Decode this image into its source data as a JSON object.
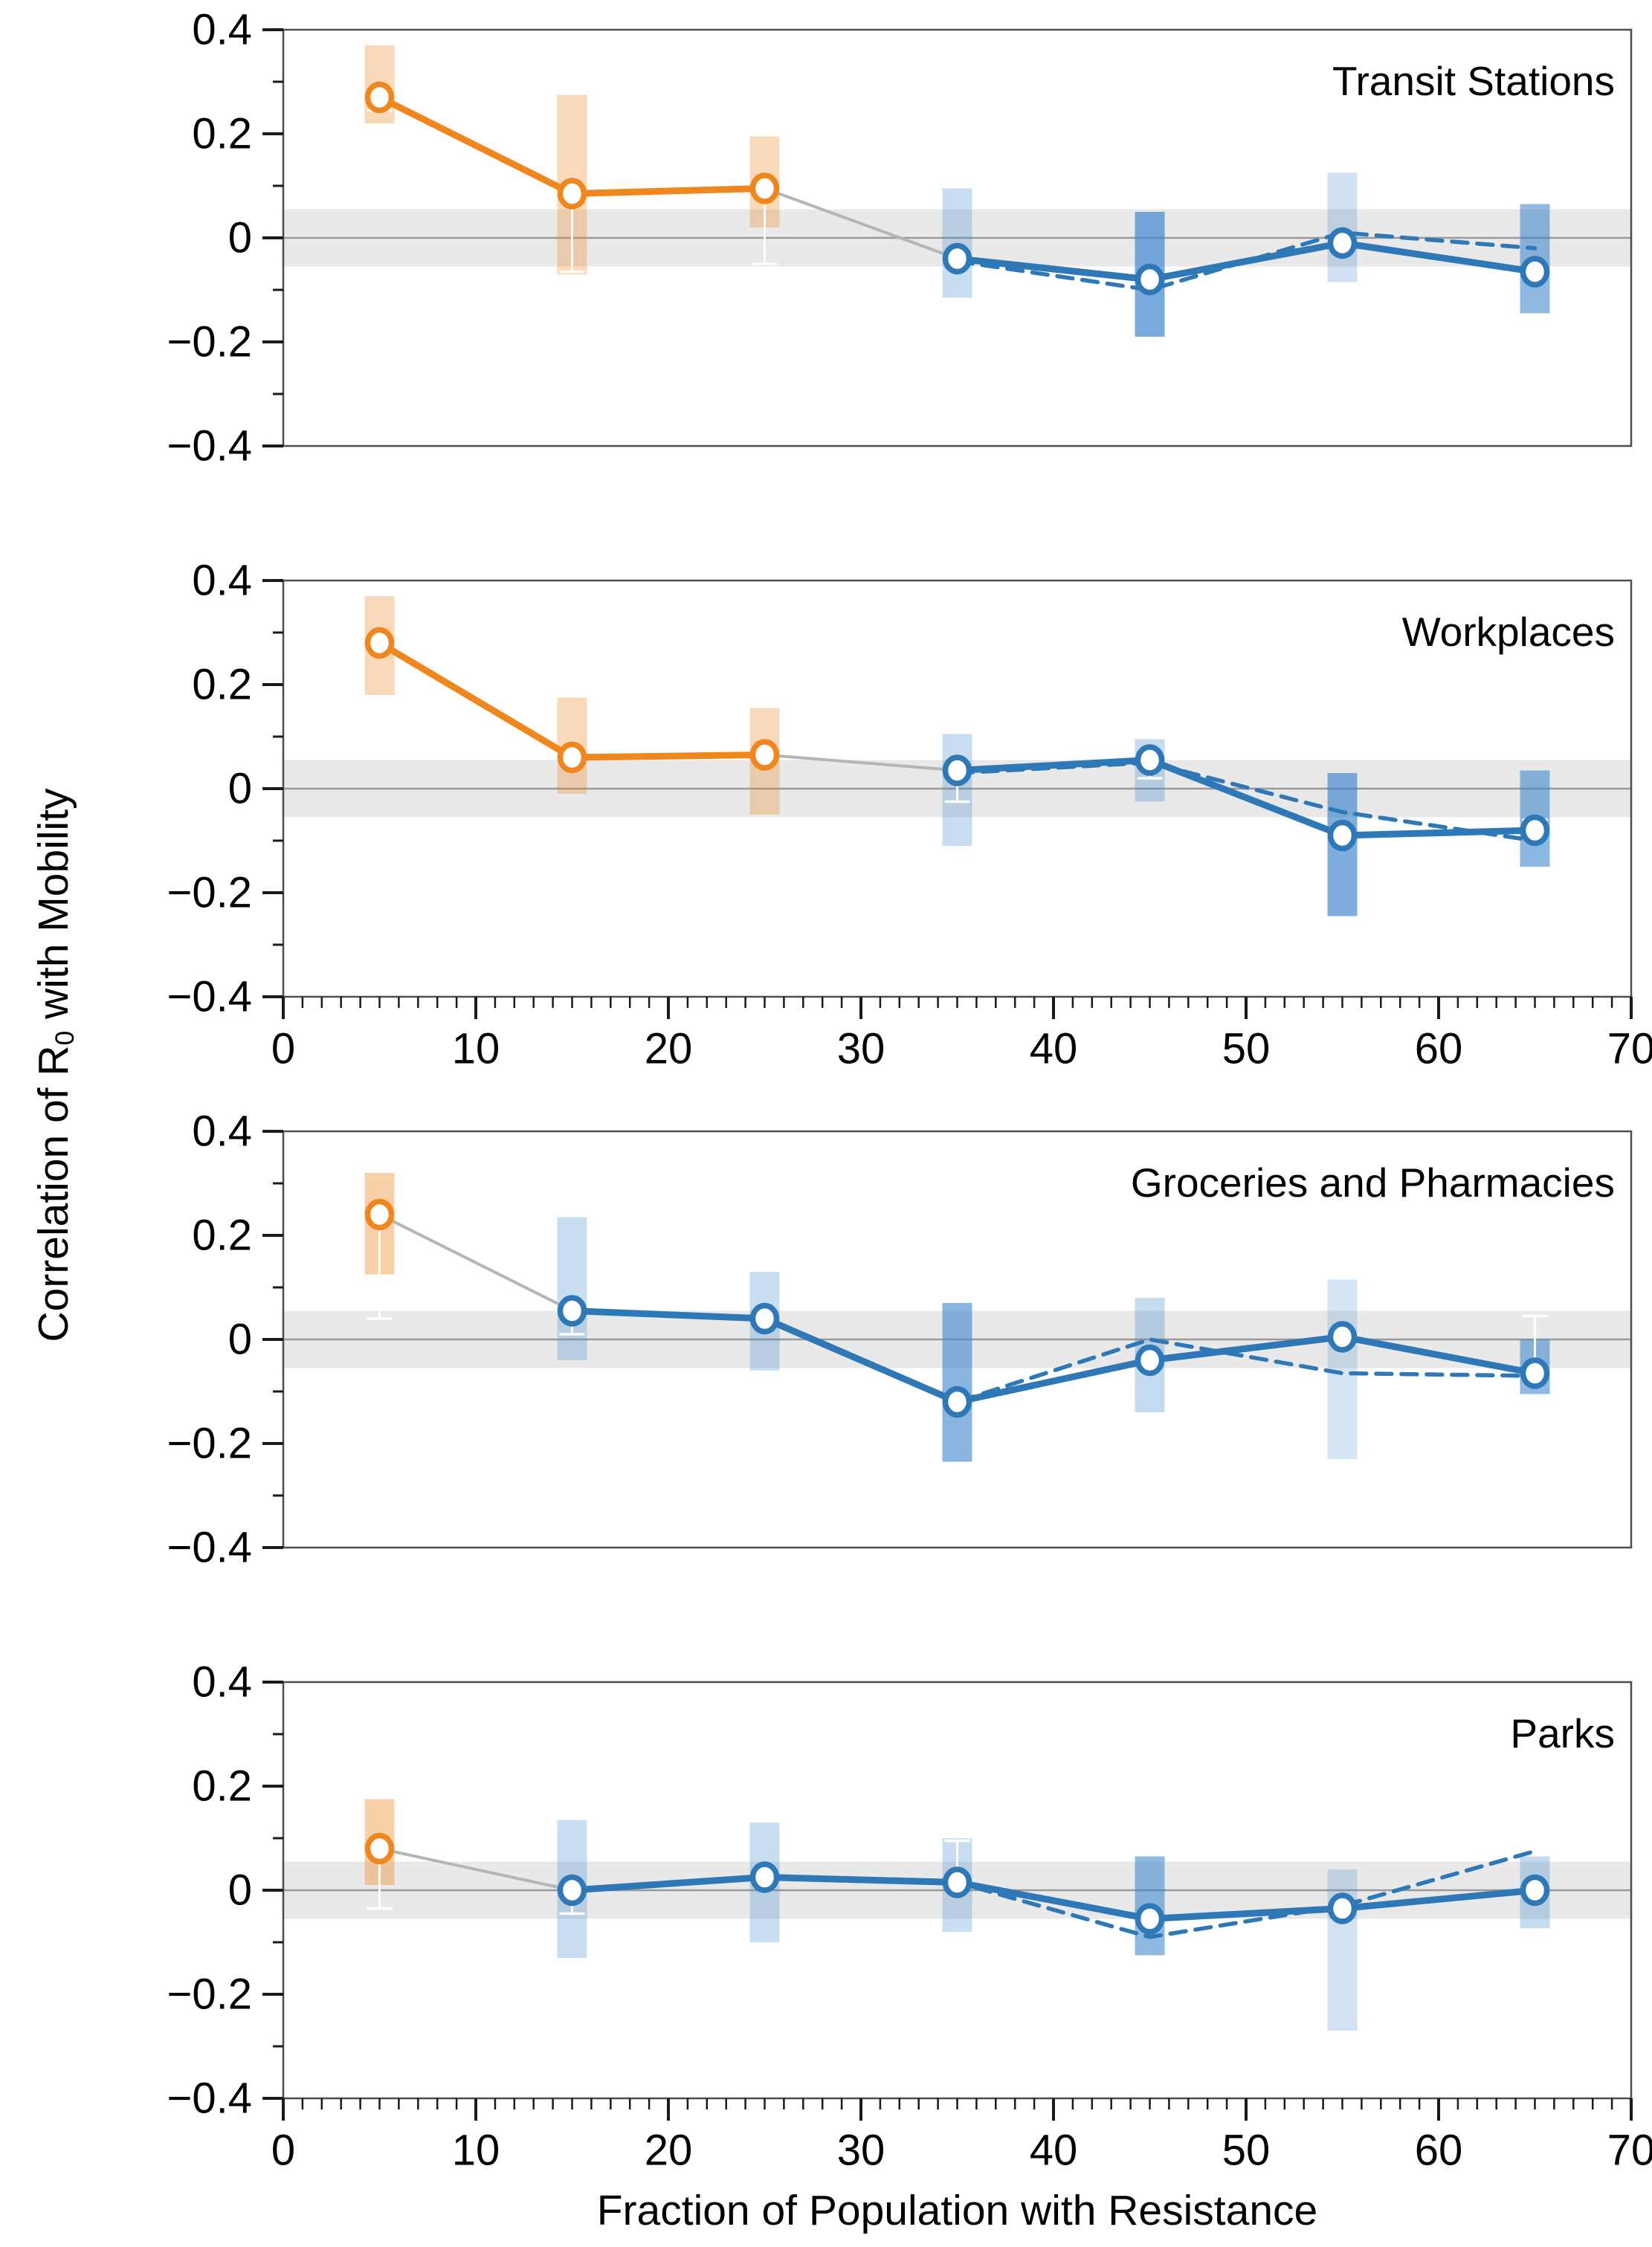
{
  "chart_data": {
    "type": "line",
    "title": "",
    "xlabel": "Fraction of Population with Resistance",
    "ylabel_pre": "Correlation of R",
    "ylabel_sub": "0",
    "ylabel_post": " with Mobility",
    "xlim": [
      0,
      70
    ],
    "ylim": [
      -0.4,
      0.4
    ],
    "x_minor_step": 1,
    "x_major_ticks": [
      {
        "v": 0,
        "label": "0"
      },
      {
        "v": 10,
        "label": "10"
      },
      {
        "v": 20,
        "label": "20"
      },
      {
        "v": 30,
        "label": "30"
      },
      {
        "v": 40,
        "label": "40"
      },
      {
        "v": 50,
        "label": "50"
      },
      {
        "v": 60,
        "label": "60"
      },
      {
        "v": 70,
        "label": "70"
      }
    ],
    "y_major_ticks": [
      {
        "v": 0.4,
        "label": "0.4"
      },
      {
        "v": 0.2,
        "label": "0.2"
      },
      {
        "v": 0,
        "label": "0"
      },
      {
        "v": -0.2,
        "label": "−0.2"
      },
      {
        "v": -0.4,
        "label": "−0.4"
      }
    ],
    "y_minor_ticks": [
      0.3,
      0.1,
      -0.1,
      -0.3
    ],
    "null_band": [
      -0.055,
      0.055
    ],
    "legend": "none",
    "grid": "off",
    "panels": [
      {
        "title": "Transit Stations",
        "show_x_axis": false,
        "points": [
          {
            "x": 5,
            "group": "orange",
            "y": 0.27,
            "dashed_y": null,
            "band": [
              0.22,
              0.37
            ],
            "band_alpha": 0.32,
            "whisker_cap": 0.245
          },
          {
            "x": 15,
            "group": "orange",
            "y": 0.085,
            "dashed_y": null,
            "band": [
              -0.07,
              0.275
            ],
            "band_alpha": 0.32,
            "whisker_cap": -0.065
          },
          {
            "x": 25,
            "group": "orange",
            "y": 0.095,
            "dashed_y": null,
            "band": [
              0.02,
              0.195
            ],
            "band_alpha": 0.32,
            "whisker_cap": -0.05
          },
          {
            "x": 35,
            "group": "blue",
            "y": -0.04,
            "dashed_y": -0.045,
            "band": [
              -0.115,
              0.095
            ],
            "band_alpha": 0.28,
            "whisker_cap": null
          },
          {
            "x": 45,
            "group": "blue",
            "y": -0.08,
            "dashed_y": -0.1,
            "band": [
              -0.19,
              0.05
            ],
            "band_alpha": 0.7,
            "whisker_cap": null
          },
          {
            "x": 55,
            "group": "blue",
            "y": -0.01,
            "dashed_y": 0.01,
            "band": [
              -0.085,
              0.125
            ],
            "band_alpha": 0.26,
            "whisker_cap": null
          },
          {
            "x": 65,
            "group": "blue",
            "y": -0.065,
            "dashed_y": -0.02,
            "band": [
              -0.145,
              0.065
            ],
            "band_alpha": 0.58,
            "whisker_cap": null
          }
        ]
      },
      {
        "title": "Workplaces",
        "show_x_axis": true,
        "points": [
          {
            "x": 5,
            "group": "orange",
            "y": 0.28,
            "dashed_y": null,
            "band": [
              0.18,
              0.37
            ],
            "band_alpha": 0.32,
            "whisker_cap": null
          },
          {
            "x": 15,
            "group": "orange",
            "y": 0.06,
            "dashed_y": null,
            "band": [
              -0.01,
              0.175
            ],
            "band_alpha": 0.32,
            "whisker_cap": null
          },
          {
            "x": 25,
            "group": "orange",
            "y": 0.065,
            "dashed_y": null,
            "band": [
              -0.05,
              0.155
            ],
            "band_alpha": 0.32,
            "whisker_cap": null
          },
          {
            "x": 35,
            "group": "blue",
            "y": 0.035,
            "dashed_y": 0.03,
            "band": [
              -0.11,
              0.105
            ],
            "band_alpha": 0.28,
            "whisker_cap": -0.025
          },
          {
            "x": 45,
            "group": "blue",
            "y": 0.055,
            "dashed_y": 0.05,
            "band": [
              -0.025,
              0.095
            ],
            "band_alpha": 0.3,
            "whisker_cap": 0.02
          },
          {
            "x": 55,
            "group": "blue",
            "y": -0.09,
            "dashed_y": -0.045,
            "band": [
              -0.245,
              0.03
            ],
            "band_alpha": 0.68,
            "whisker_cap": null
          },
          {
            "x": 65,
            "group": "blue",
            "y": -0.08,
            "dashed_y": -0.1,
            "band": [
              -0.15,
              0.035
            ],
            "band_alpha": 0.6,
            "whisker_cap": -0.06
          }
        ]
      },
      {
        "title": "Groceries and Pharmacies",
        "show_x_axis": false,
        "points": [
          {
            "x": 5,
            "group": "orange",
            "y": 0.24,
            "dashed_y": null,
            "band": [
              0.125,
              0.32
            ],
            "band_alpha": 0.4,
            "whisker_cap": 0.04
          },
          {
            "x": 15,
            "group": "blue",
            "y": 0.055,
            "dashed_y": 0.055,
            "band": [
              -0.04,
              0.235
            ],
            "band_alpha": 0.28,
            "whisker_cap": 0.01
          },
          {
            "x": 25,
            "group": "blue",
            "y": 0.04,
            "dashed_y": 0.04,
            "band": [
              -0.06,
              0.13
            ],
            "band_alpha": 0.28,
            "whisker_cap": null
          },
          {
            "x": 35,
            "group": "blue",
            "y": -0.12,
            "dashed_y": -0.12,
            "band": [
              -0.235,
              0.07
            ],
            "band_alpha": 0.62,
            "whisker_cap": null
          },
          {
            "x": 45,
            "group": "blue",
            "y": -0.04,
            "dashed_y": 0.0,
            "band": [
              -0.14,
              0.08
            ],
            "band_alpha": 0.3,
            "whisker_cap": null
          },
          {
            "x": 55,
            "group": "blue",
            "y": 0.005,
            "dashed_y": -0.065,
            "band": [
              -0.23,
              0.115
            ],
            "band_alpha": 0.22,
            "whisker_cap": null
          },
          {
            "x": 65,
            "group": "blue",
            "y": -0.065,
            "dashed_y": -0.07,
            "band": [
              -0.105,
              0.0
            ],
            "band_alpha": 0.58,
            "whisker_cap": 0.045
          }
        ]
      },
      {
        "title": "Parks",
        "show_x_axis": true,
        "points": [
          {
            "x": 5,
            "group": "orange",
            "y": 0.08,
            "dashed_y": null,
            "band": [
              0.01,
              0.175
            ],
            "band_alpha": 0.4,
            "whisker_cap": -0.035
          },
          {
            "x": 15,
            "group": "blue",
            "y": 0.0,
            "dashed_y": 0.0,
            "band": [
              -0.13,
              0.135
            ],
            "band_alpha": 0.28,
            "whisker_cap": -0.045
          },
          {
            "x": 25,
            "group": "blue",
            "y": 0.025,
            "dashed_y": 0.025,
            "band": [
              -0.1,
              0.13
            ],
            "band_alpha": 0.28,
            "whisker_cap": null
          },
          {
            "x": 35,
            "group": "blue",
            "y": 0.015,
            "dashed_y": 0.015,
            "band": [
              -0.08,
              0.1
            ],
            "band_alpha": 0.28,
            "whisker_cap": 0.095
          },
          {
            "x": 45,
            "group": "blue",
            "y": -0.055,
            "dashed_y": -0.09,
            "band": [
              -0.125,
              0.065
            ],
            "band_alpha": 0.58,
            "whisker_cap": null
          },
          {
            "x": 55,
            "group": "blue",
            "y": -0.035,
            "dashed_y": -0.03,
            "band": [
              -0.27,
              0.04
            ],
            "band_alpha": 0.24,
            "whisker_cap": null
          },
          {
            "x": 65,
            "group": "blue",
            "y": 0.0,
            "dashed_y": 0.075,
            "band": [
              -0.073,
              0.065
            ],
            "band_alpha": 0.3,
            "whisker_cap": null
          }
        ]
      }
    ]
  },
  "colors": {
    "orange_line": "#F0871E",
    "blue_line": "#2F78B7",
    "orange_band_rgb": "238,138,40",
    "blue_band_rgb": "64,135,205",
    "gray_band": "#E9E9E9",
    "zero_line": "#999999",
    "connector": "#B5B5B5",
    "frame": "#4D4D4D",
    "tick": "#1A1A1A",
    "whisker": "rgba(255,255,255,0.92)"
  }
}
